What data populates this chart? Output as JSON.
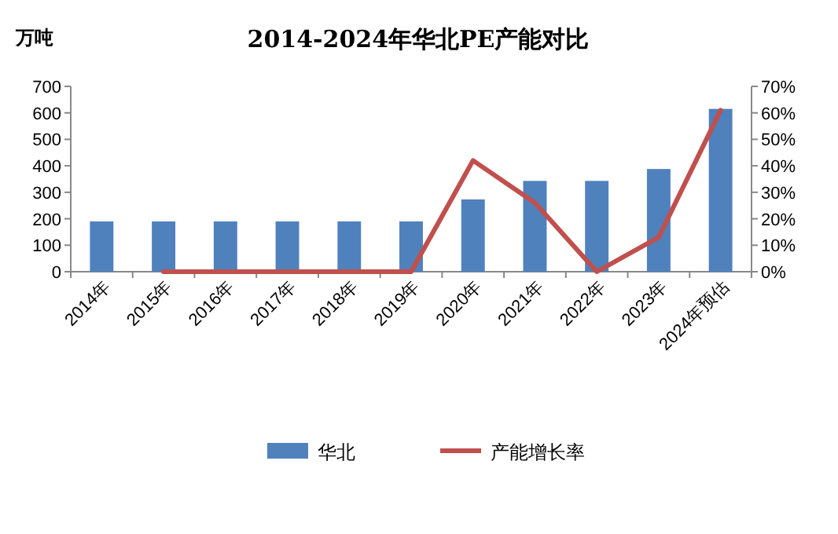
{
  "chart_data": {
    "type": "bar",
    "title": "2014-2024年华北PE产能对比",
    "ylabel": "万吨",
    "categories": [
      "2014年",
      "2015年",
      "2016年",
      "2017年",
      "2018年",
      "2019年",
      "2020年",
      "2021年",
      "2022年",
      "2023年",
      "2024年预估"
    ],
    "series": [
      {
        "name": "华北",
        "color": "#4f81bd",
        "values": [
          190,
          190,
          190,
          190,
          190,
          190,
          273,
          343,
          343,
          388,
          615
        ]
      },
      {
        "name": "产能增长率",
        "type": "line",
        "axis": "y2",
        "color": "#c0504d",
        "values": [
          null,
          0,
          0,
          0,
          0,
          0,
          42,
          26,
          0,
          13,
          61
        ]
      }
    ],
    "ylim": [
      0,
      700
    ],
    "yticks": [
      0,
      100,
      200,
      300,
      400,
      500,
      600,
      700
    ],
    "y2lim": [
      0,
      70
    ],
    "y2ticks": [
      {
        "value": 0,
        "label": "0%"
      },
      {
        "value": 10,
        "label": "10%"
      },
      {
        "value": 20,
        "label": "20%"
      },
      {
        "value": 30,
        "label": "30%"
      },
      {
        "value": 40,
        "label": "40%"
      },
      {
        "value": 50,
        "label": "50%"
      },
      {
        "value": 60,
        "label": "60%"
      },
      {
        "value": 70,
        "label": "70%"
      }
    ],
    "legend": "bottom",
    "marker": "none"
  }
}
